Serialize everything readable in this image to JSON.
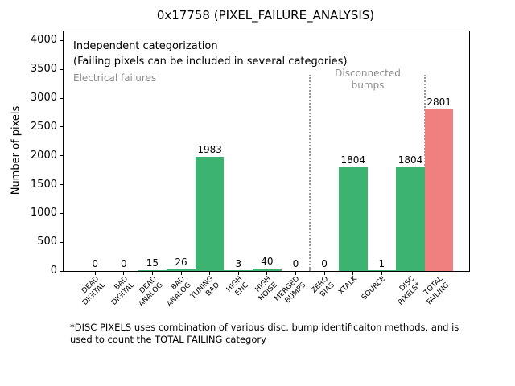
{
  "chart_data": {
    "type": "bar",
    "title": "0x17758 (PIXEL_FAILURE_ANALYSIS)",
    "ylabel": "Number of pixels",
    "xlabel": "",
    "ylim": [
      0,
      4160
    ],
    "yticks": [
      0,
      500,
      1000,
      1500,
      2000,
      2500,
      3000,
      3500,
      4000
    ],
    "grid": false,
    "legend": null,
    "categories": [
      "DEAD\nDIGITAL",
      "BAD\nDIGITAL",
      "DEAD\nANALOG",
      "BAD\nANALOG",
      "TUNING\nBAD",
      "HIGH\nENC",
      "HIGH\nNOISE",
      "MERGED\nBUMPS",
      "ZERO\nBIAS",
      "XTALK",
      "SOURCE",
      "DISC\nPIXELS*",
      "TOTAL\nFAILING"
    ],
    "values": [
      0,
      0,
      15,
      26,
      1983,
      3,
      40,
      0,
      0,
      1804,
      1,
      1804,
      2801
    ],
    "bar_value_labels": [
      "0",
      "0",
      "15",
      "26",
      "1983",
      "3",
      "40",
      "0",
      "0",
      "1804",
      "1",
      "1804",
      "2801"
    ],
    "bar_colors": [
      "#3cb371",
      "#3cb371",
      "#3cb371",
      "#3cb371",
      "#3cb371",
      "#3cb371",
      "#3cb371",
      "#3cb371",
      "#3cb371",
      "#3cb371",
      "#3cb371",
      "#3cb371",
      "#f08080"
    ],
    "colors": {
      "bar_default": "#3cb371",
      "bar_total_failing": "#f08080",
      "separator_line": "#999999",
      "region_label": "#8c8c8c",
      "axis": "#000000"
    },
    "separators": {
      "x_positions": [
        7.5,
        11.5
      ],
      "top_value": 3400
    },
    "annotations": {
      "line1": "Independent categorization",
      "line2": "(Failing pixels can be included in several categories)",
      "region_left": "Electrical failures",
      "region_middle": "Disconnected\nbumps"
    },
    "footnote": "*DISC PIXELS uses combination of various disc. bump identificaiton methods, and is\nused to count the TOTAL FAILING category"
  }
}
